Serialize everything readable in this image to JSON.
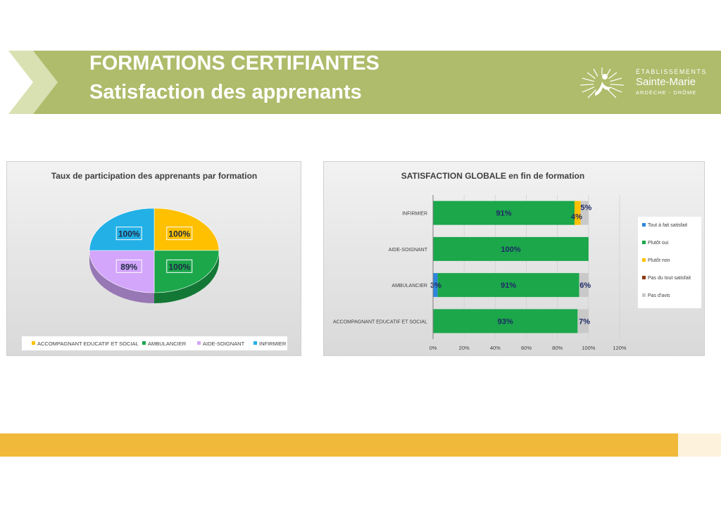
{
  "header": {
    "title_line1": "FORMATIONS CERTIFIANTES",
    "title_line2": "Satisfaction des apprenants",
    "band_color": "#aebc6b",
    "chevron_color": "#d9e1b2",
    "logo": {
      "line1": "ÉTABLISSEMENTS",
      "line2": "Sainte-Marie",
      "line3": "ARDÈCHE - DRÔME"
    }
  },
  "colors": {
    "bottom_bar": "#f1b93a",
    "bottom_bar_end": "#fdf3dc"
  },
  "chart_data": [
    {
      "type": "pie",
      "title": "Taux de participation des apprenants par formation",
      "legend_position": "bottom",
      "slices": [
        {
          "name": "ACCOMPAGNANT EDUCATIF ET SOCIAL",
          "value": 25,
          "label": "100%",
          "color": "#ffc000"
        },
        {
          "name": "AMBULANCIER",
          "value": 25,
          "label": "100%",
          "color": "#1ba74a"
        },
        {
          "name": "AIDE-SOIGNANT",
          "value": 25,
          "label": "89%",
          "color": "#d3a5fb"
        },
        {
          "name": "INFIRMIER",
          "value": 25,
          "label": "100%",
          "color": "#22b0e6"
        }
      ]
    },
    {
      "type": "bar",
      "orientation": "horizontal",
      "stacked": true,
      "title": "SATISFACTION GLOBALE en fin de formation",
      "categories": [
        "INFIRMIER",
        "AIDE-SOIGNANT",
        "AMBULANCIER",
        "ACCOMPAGNANT EDUCATIF ET SOCIAL"
      ],
      "xlim": [
        0,
        120
      ],
      "ticks": [
        "0%",
        "20%",
        "40%",
        "60%",
        "80%",
        "100%",
        "120%"
      ],
      "legend_position": "right",
      "series": [
        {
          "name": "Tout à fait satisfait",
          "color": "#2e86de",
          "values": [
            0,
            0,
            3,
            0
          ],
          "labels": [
            "",
            "",
            "3%",
            ""
          ]
        },
        {
          "name": "Plutôt oui",
          "color": "#1ba74a",
          "values": [
            91,
            100,
            91,
            93
          ],
          "labels": [
            "91%",
            "100%",
            "91%",
            "93%"
          ]
        },
        {
          "name": "Plutôt non",
          "color": "#ffc000",
          "values": [
            4,
            0,
            0,
            0
          ],
          "labels": [
            "4%",
            "",
            "",
            ""
          ]
        },
        {
          "name": "Pas du tout satisfait",
          "color": "#8b3a12",
          "values": [
            0,
            0,
            0,
            0
          ],
          "labels": [
            "",
            "",
            "",
            ""
          ]
        },
        {
          "name": "Pas d'avis",
          "color": "#c9c9c9",
          "values": [
            5,
            0,
            6,
            7
          ],
          "labels": [
            "5%",
            "",
            "6%",
            "7%"
          ]
        }
      ]
    }
  ]
}
